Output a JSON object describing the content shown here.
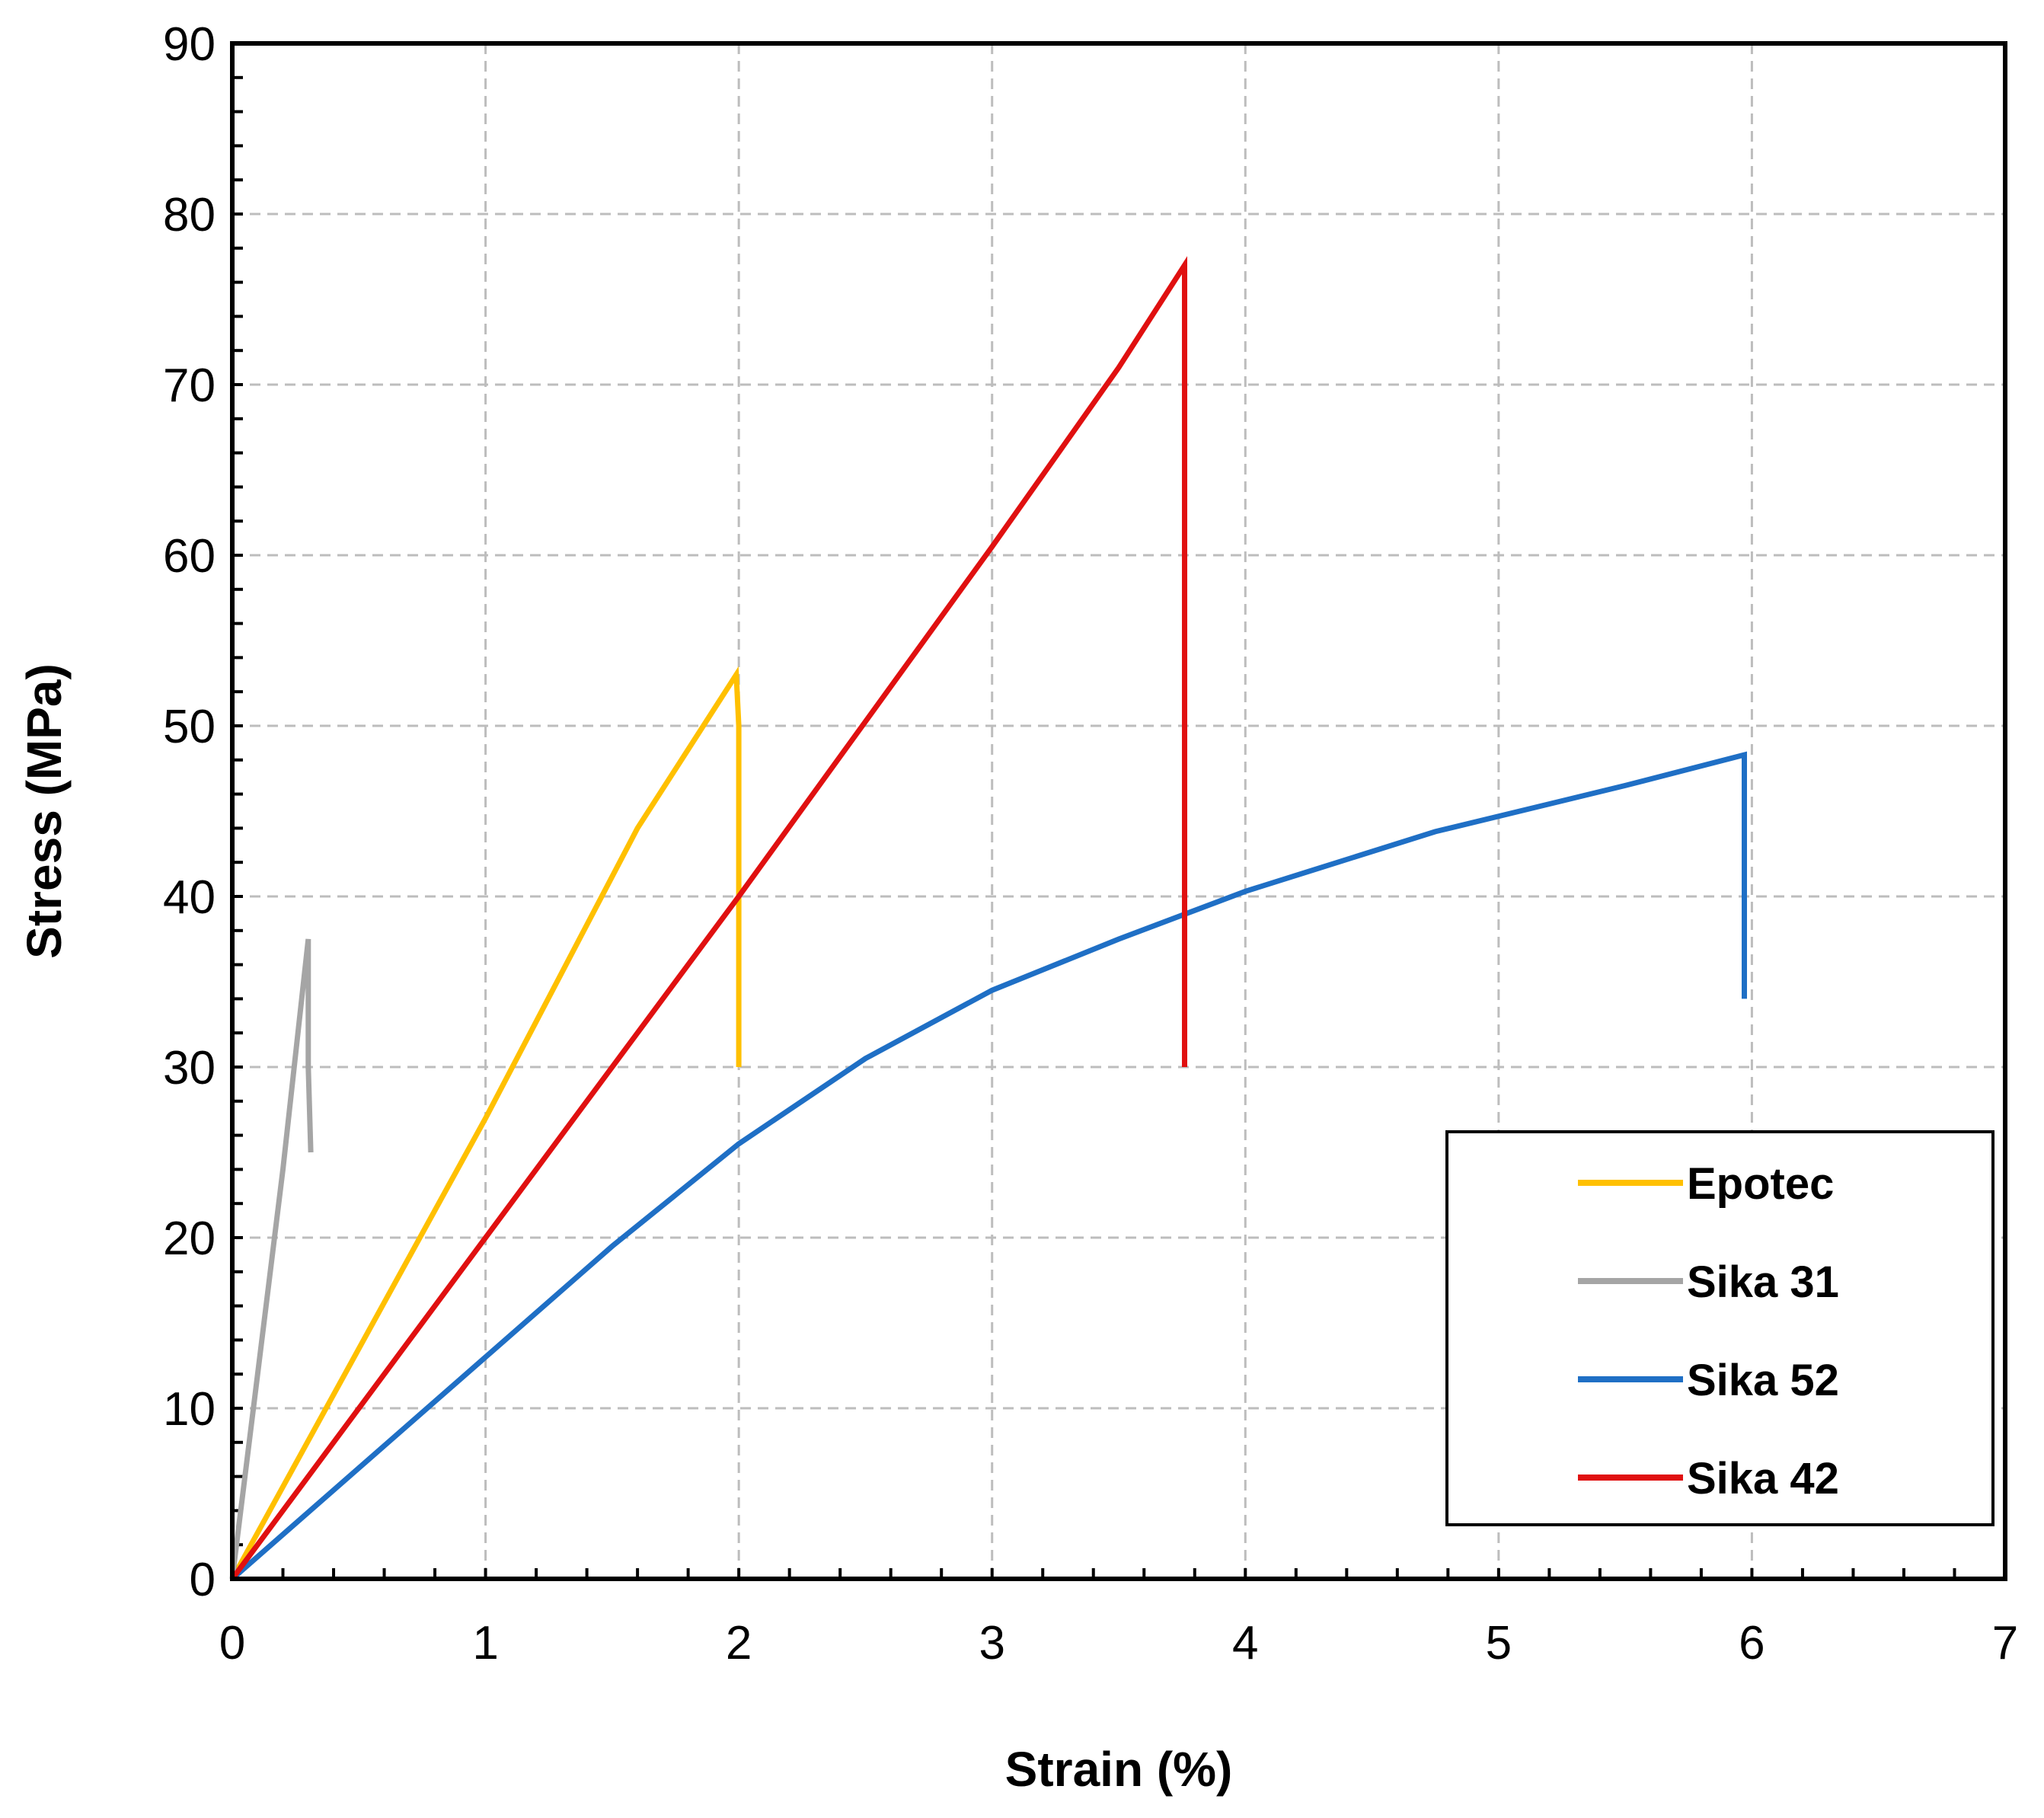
{
  "chart_data": {
    "type": "line",
    "title": "",
    "xlabel": "Strain (%)",
    "ylabel": "Stress (MPa)",
    "xlim": [
      0,
      7
    ],
    "ylim": [
      0,
      90
    ],
    "xticks": [
      0,
      1,
      2,
      3,
      4,
      5,
      6,
      7
    ],
    "yticks": [
      0,
      10,
      20,
      30,
      40,
      50,
      60,
      70,
      80,
      90
    ],
    "grid": true,
    "legend_position": "bottom-right",
    "series": [
      {
        "name": "Epotec",
        "color": "#FFC000",
        "x": [
          0,
          1.0,
          1.6,
          1.99,
          2.0,
          2.0
        ],
        "y": [
          0,
          27,
          44,
          53,
          50,
          30
        ]
      },
      {
        "name": "Sika 31",
        "color": "#A5A5A5",
        "x": [
          0,
          0.1,
          0.2,
          0.3,
          0.3,
          0.31
        ],
        "y": [
          0,
          12,
          24,
          37.5,
          30,
          25
        ]
      },
      {
        "name": "Sika 52",
        "color": "#1F6FC5",
        "x": [
          0,
          0.5,
          1.0,
          1.5,
          2.0,
          2.5,
          3.0,
          3.5,
          4.0,
          4.75,
          5.5,
          5.97,
          5.97
        ],
        "y": [
          0,
          6.5,
          13,
          19.5,
          25.5,
          30.5,
          34.5,
          37.5,
          40.3,
          43.8,
          46.5,
          48.3,
          34
        ]
      },
      {
        "name": "Sika 42",
        "color": "#E01010",
        "x": [
          0,
          1.0,
          2.0,
          3.0,
          3.5,
          3.76,
          3.76
        ],
        "y": [
          0,
          20,
          40,
          60.5,
          71,
          77,
          30
        ]
      }
    ]
  }
}
